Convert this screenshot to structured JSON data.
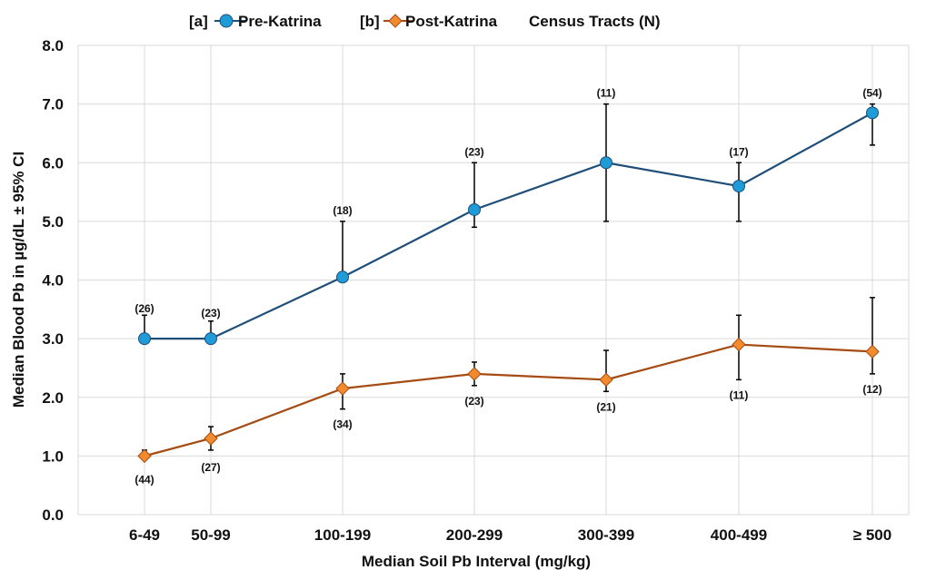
{
  "chart_data": {
    "type": "line",
    "title": "",
    "xlabel": "Median Soil Pb Interval (mg/kg)",
    "ylabel": "Median Blood Pb in µg/dL ± 95% CI",
    "ylim": [
      0,
      8
    ],
    "y_ticks": [
      "0.0",
      "1.0",
      "2.0",
      "3.0",
      "4.0",
      "5.0",
      "6.0",
      "7.0",
      "8.0"
    ],
    "grid": true,
    "legend_position": "top",
    "categories": [
      "6-49",
      "50-99",
      "100-199",
      "200-299",
      "300-399",
      "400-499",
      "≥ 500"
    ],
    "x": [
      27.5,
      74.5,
      149.5,
      249.5,
      349.5,
      449.5,
      550
    ],
    "series": [
      {
        "name": "Pre-Katrina",
        "prefix": "[a]",
        "color": "#1f9bd8",
        "line_color": "#1f4e79",
        "marker": "circle",
        "values": [
          3.0,
          3.0,
          4.05,
          5.2,
          6.0,
          5.6,
          6.85
        ],
        "ci_low": [
          3.0,
          3.0,
          4.05,
          4.9,
          5.0,
          5.0,
          6.3
        ],
        "ci_high": [
          3.4,
          3.3,
          5.0,
          6.0,
          7.0,
          6.0,
          7.0
        ],
        "n": [
          "(26)",
          "(23)",
          "(18)",
          "(23)",
          "(11)",
          "(17)",
          "(54)"
        ]
      },
      {
        "name": "Post-Katrina",
        "prefix": "[b]",
        "color": "#f28a2e",
        "line_color": "#a54b13",
        "marker": "diamond",
        "values": [
          1.0,
          1.3,
          2.15,
          2.4,
          2.3,
          2.9,
          2.78
        ],
        "ci_low": [
          1.0,
          1.1,
          1.8,
          2.2,
          2.1,
          2.3,
          2.4
        ],
        "ci_high": [
          1.1,
          1.5,
          2.4,
          2.6,
          2.8,
          3.4,
          3.7
        ],
        "n": [
          "(44)",
          "(27)",
          "(34)",
          "(23)",
          "(21)",
          "(11)",
          "(12)"
        ]
      }
    ],
    "legend_extra": "Census Tracts (N)"
  }
}
